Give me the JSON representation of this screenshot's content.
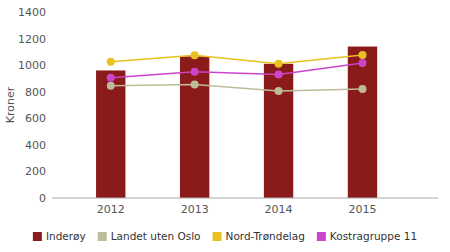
{
  "chart_data": {
    "type": "bar",
    "x": [
      2012,
      2013,
      2014,
      2015
    ],
    "xlim": [
      2011.3,
      2015.9
    ],
    "xticks": [
      2012,
      2013,
      2014,
      2015
    ],
    "series": [
      {
        "name": "Inderøy",
        "type": "bar",
        "color": "#8B1A1A",
        "values": [
          960,
          1066,
          1010,
          1140
        ]
      },
      {
        "name": "Landet uten Oslo",
        "type": "line",
        "color": "#BCBD98",
        "marker": "circle",
        "values": [
          845,
          855,
          805,
          820
        ]
      },
      {
        "name": "Nord-Trøndelag",
        "type": "line",
        "color": "#E8C020",
        "marker": "circle",
        "values": [
          1025,
          1075,
          1010,
          1077
        ]
      },
      {
        "name": "Kostragruppe 11",
        "type": "line",
        "color": "#CC44CC",
        "marker": "circle",
        "values": [
          905,
          950,
          930,
          1016
        ]
      }
    ],
    "ylabel": "Kroner",
    "ylim": [
      0,
      1400
    ],
    "yticks": [
      0,
      200,
      400,
      600,
      800,
      1000,
      1200,
      1400
    ],
    "grid": false,
    "legend": "bottom"
  }
}
